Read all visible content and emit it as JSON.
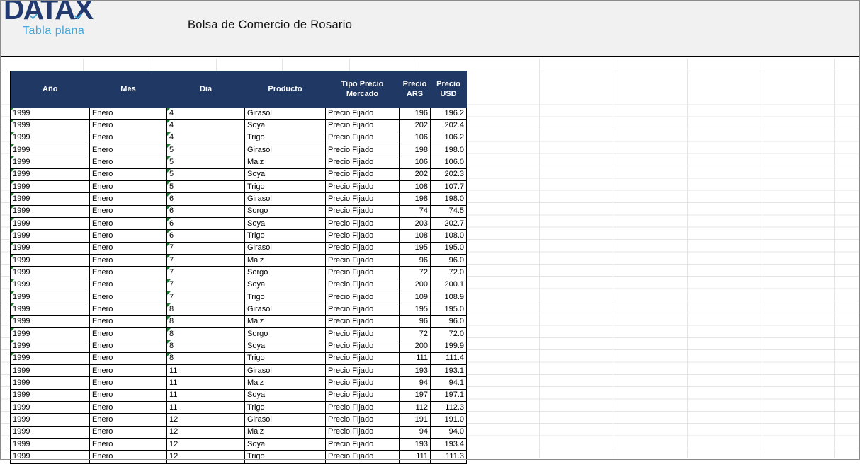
{
  "brand": {
    "logo": "DATAX",
    "tagline": "Tabla plana"
  },
  "band": {
    "title": "Bolsa de Comercio de Rosario"
  },
  "colors": {
    "header_bg": "#1F3864",
    "band_bg": "#F1F1F1",
    "gridline": "#E4E4E4",
    "flag_green": "#1E7B2F",
    "brand_navy": "#223A70",
    "brand_blue": "#45A6DA"
  },
  "table": {
    "columns": [
      "Año",
      "Mes",
      "Dia",
      "Producto",
      "Tipo Precio Mercado",
      "Precio ARS",
      "Precio USD"
    ],
    "rows": [
      {
        "year": "1999",
        "month": "Enero",
        "day": "4",
        "product": "Girasol",
        "market_price_type": "Precio Fijado",
        "price_ars": "196",
        "price_usd": "196.2",
        "text_flag": true
      },
      {
        "year": "1999",
        "month": "Enero",
        "day": "4",
        "product": "Soya",
        "market_price_type": "Precio Fijado",
        "price_ars": "202",
        "price_usd": "202.4",
        "text_flag": true
      },
      {
        "year": "1999",
        "month": "Enero",
        "day": "4",
        "product": "Trigo",
        "market_price_type": "Precio Fijado",
        "price_ars": "106",
        "price_usd": "106.2",
        "text_flag": true
      },
      {
        "year": "1999",
        "month": "Enero",
        "day": "5",
        "product": "Girasol",
        "market_price_type": "Precio Fijado",
        "price_ars": "198",
        "price_usd": "198.0",
        "text_flag": true
      },
      {
        "year": "1999",
        "month": "Enero",
        "day": "5",
        "product": "Maiz",
        "market_price_type": "Precio Fijado",
        "price_ars": "106",
        "price_usd": "106.0",
        "text_flag": true
      },
      {
        "year": "1999",
        "month": "Enero",
        "day": "5",
        "product": "Soya",
        "market_price_type": "Precio Fijado",
        "price_ars": "202",
        "price_usd": "202.3",
        "text_flag": true
      },
      {
        "year": "1999",
        "month": "Enero",
        "day": "5",
        "product": "Trigo",
        "market_price_type": "Precio Fijado",
        "price_ars": "108",
        "price_usd": "107.7",
        "text_flag": true
      },
      {
        "year": "1999",
        "month": "Enero",
        "day": "6",
        "product": "Girasol",
        "market_price_type": "Precio Fijado",
        "price_ars": "198",
        "price_usd": "198.0",
        "text_flag": true
      },
      {
        "year": "1999",
        "month": "Enero",
        "day": "6",
        "product": "Sorgo",
        "market_price_type": "Precio Fijado",
        "price_ars": "74",
        "price_usd": "74.5",
        "text_flag": true
      },
      {
        "year": "1999",
        "month": "Enero",
        "day": "6",
        "product": "Soya",
        "market_price_type": "Precio Fijado",
        "price_ars": "203",
        "price_usd": "202.7",
        "text_flag": true
      },
      {
        "year": "1999",
        "month": "Enero",
        "day": "6",
        "product": "Trigo",
        "market_price_type": "Precio Fijado",
        "price_ars": "108",
        "price_usd": "108.0",
        "text_flag": true
      },
      {
        "year": "1999",
        "month": "Enero",
        "day": "7",
        "product": "Girasol",
        "market_price_type": "Precio Fijado",
        "price_ars": "195",
        "price_usd": "195.0",
        "text_flag": true
      },
      {
        "year": "1999",
        "month": "Enero",
        "day": "7",
        "product": "Maiz",
        "market_price_type": "Precio Fijado",
        "price_ars": "96",
        "price_usd": "96.0",
        "text_flag": true
      },
      {
        "year": "1999",
        "month": "Enero",
        "day": "7",
        "product": "Sorgo",
        "market_price_type": "Precio Fijado",
        "price_ars": "72",
        "price_usd": "72.0",
        "text_flag": true
      },
      {
        "year": "1999",
        "month": "Enero",
        "day": "7",
        "product": "Soya",
        "market_price_type": "Precio Fijado",
        "price_ars": "200",
        "price_usd": "200.1",
        "text_flag": true
      },
      {
        "year": "1999",
        "month": "Enero",
        "day": "7",
        "product": "Trigo",
        "market_price_type": "Precio Fijado",
        "price_ars": "109",
        "price_usd": "108.9",
        "text_flag": true
      },
      {
        "year": "1999",
        "month": "Enero",
        "day": "8",
        "product": "Girasol",
        "market_price_type": "Precio Fijado",
        "price_ars": "195",
        "price_usd": "195.0",
        "text_flag": true
      },
      {
        "year": "1999",
        "month": "Enero",
        "day": "8",
        "product": "Maiz",
        "market_price_type": "Precio Fijado",
        "price_ars": "96",
        "price_usd": "96.0",
        "text_flag": true
      },
      {
        "year": "1999",
        "month": "Enero",
        "day": "8",
        "product": "Sorgo",
        "market_price_type": "Precio Fijado",
        "price_ars": "72",
        "price_usd": "72.0",
        "text_flag": true
      },
      {
        "year": "1999",
        "month": "Enero",
        "day": "8",
        "product": "Soya",
        "market_price_type": "Precio Fijado",
        "price_ars": "200",
        "price_usd": "199.9",
        "text_flag": true
      },
      {
        "year": "1999",
        "month": "Enero",
        "day": "8",
        "product": "Trigo",
        "market_price_type": "Precio Fijado",
        "price_ars": "111",
        "price_usd": "111.4",
        "text_flag": true
      },
      {
        "year": "1999",
        "month": "Enero",
        "day": "11",
        "product": "Girasol",
        "market_price_type": "Precio Fijado",
        "price_ars": "193",
        "price_usd": "193.1",
        "text_flag": false
      },
      {
        "year": "1999",
        "month": "Enero",
        "day": "11",
        "product": "Maiz",
        "market_price_type": "Precio Fijado",
        "price_ars": "94",
        "price_usd": "94.1",
        "text_flag": false
      },
      {
        "year": "1999",
        "month": "Enero",
        "day": "11",
        "product": "Soya",
        "market_price_type": "Precio Fijado",
        "price_ars": "197",
        "price_usd": "197.1",
        "text_flag": false
      },
      {
        "year": "1999",
        "month": "Enero",
        "day": "11",
        "product": "Trigo",
        "market_price_type": "Precio Fijado",
        "price_ars": "112",
        "price_usd": "112.3",
        "text_flag": false
      },
      {
        "year": "1999",
        "month": "Enero",
        "day": "12",
        "product": "Girasol",
        "market_price_type": "Precio Fijado",
        "price_ars": "191",
        "price_usd": "191.0",
        "text_flag": false
      },
      {
        "year": "1999",
        "month": "Enero",
        "day": "12",
        "product": "Maiz",
        "market_price_type": "Precio Fijado",
        "price_ars": "94",
        "price_usd": "94.0",
        "text_flag": false
      },
      {
        "year": "1999",
        "month": "Enero",
        "day": "12",
        "product": "Soya",
        "market_price_type": "Precio Fijado",
        "price_ars": "193",
        "price_usd": "193.4",
        "text_flag": false
      },
      {
        "year": "1999",
        "month": "Enero",
        "day": "12",
        "product": "Trigo",
        "market_price_type": "Precio Fijado",
        "price_ars": "111",
        "price_usd": "111.3",
        "text_flag": false
      }
    ]
  }
}
